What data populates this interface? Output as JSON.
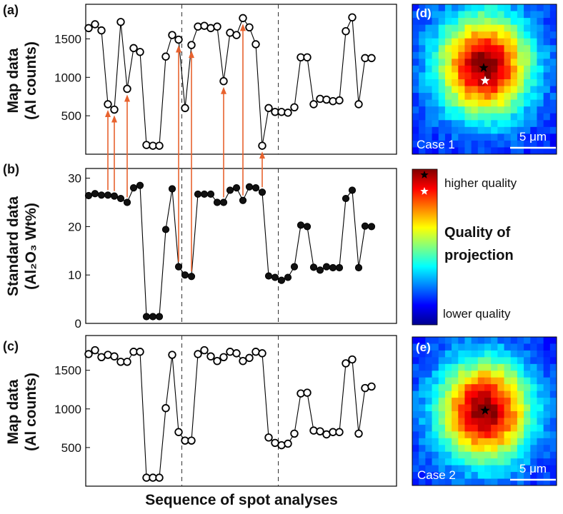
{
  "chart_data": [
    {
      "panel": "(a)",
      "type": "line",
      "marker": "open-circle",
      "ylabel": [
        "Map data",
        "(Al counts)"
      ],
      "ylim": [
        0,
        1950
      ],
      "yticks": [
        500,
        1000,
        1500
      ],
      "values": [
        1640,
        1690,
        1610,
        650,
        580,
        1720,
        850,
        1380,
        1330,
        120,
        110,
        110,
        1270,
        1550,
        1490,
        600,
        1420,
        1660,
        1670,
        1640,
        1660,
        950,
        1580,
        1550,
        1770,
        1650,
        1430,
        110,
        600,
        550,
        550,
        540,
        610,
        1260,
        1260,
        650,
        720,
        710,
        690,
        700,
        1600,
        1780,
        650,
        1250,
        1250
      ],
      "dividers_after_index": [
        14,
        29
      ],
      "grid": false
    },
    {
      "panel": "(b)",
      "type": "line",
      "marker": "filled-circle",
      "ylabel": [
        "Standard data",
        "(Al₂O₃ Wt%)"
      ],
      "ylim": [
        0,
        32
      ],
      "yticks": [
        0,
        10,
        20,
        30
      ],
      "values": [
        26.4,
        26.8,
        26.5,
        26.5,
        26.3,
        25.8,
        25.0,
        28.0,
        28.5,
        1.4,
        1.4,
        1.4,
        19.4,
        27.8,
        11.7,
        10.0,
        9.7,
        26.7,
        26.7,
        26.7,
        25.0,
        25.0,
        27.5,
        28.0,
        25.4,
        28.2,
        28.0,
        27.1,
        9.8,
        9.5,
        8.9,
        9.5,
        11.7,
        20.3,
        20.0,
        11.6,
        11.0,
        11.7,
        11.5,
        11.5,
        25.8,
        27.5,
        11.5,
        20.1,
        20.0
      ],
      "dividers_after_index": [
        14,
        29
      ],
      "grid": false
    },
    {
      "panel": "(c)",
      "type": "line",
      "marker": "open-circle",
      "ylabel": [
        "Map data",
        "(Al counts)"
      ],
      "xlabel": "Sequence of spot analyses",
      "ylim": [
        0,
        1950
      ],
      "yticks": [
        500,
        1000,
        1500
      ],
      "values": [
        1710,
        1760,
        1670,
        1700,
        1680,
        1610,
        1610,
        1740,
        1740,
        110,
        110,
        110,
        1010,
        1700,
        700,
        590,
        590,
        1710,
        1760,
        1680,
        1620,
        1670,
        1740,
        1720,
        1620,
        1660,
        1740,
        1720,
        630,
        560,
        530,
        550,
        680,
        1200,
        1210,
        720,
        710,
        670,
        700,
        700,
        1590,
        1640,
        680,
        1270,
        1290
      ],
      "dividers_after_index": [
        14,
        29
      ],
      "grid": false
    }
  ],
  "arrows": [
    {
      "from_b": 3,
      "to_a": 3
    },
    {
      "from_b": 4,
      "to_a": 4
    },
    {
      "from_b": 6,
      "to_a": 6
    },
    {
      "from_b": 14,
      "to_a": 14
    },
    {
      "from_b": 16,
      "to_a": 16
    },
    {
      "from_b": 21,
      "to_a": 21
    },
    {
      "from_b": 24,
      "to_a": 24
    },
    {
      "from_b": 27,
      "to_a": 27
    }
  ],
  "colors": {
    "line": "#000000",
    "arrow": "#e8622e",
    "divider": "#333333"
  },
  "maps": [
    {
      "panel": "(d)",
      "case": "Case 1",
      "scalebar": "5 μm",
      "stars": [
        "black",
        "white"
      ]
    },
    {
      "panel": "(e)",
      "case": "Case 2",
      "scalebar": "5 μm",
      "stars": [
        "black"
      ]
    }
  ],
  "colorbar": {
    "top_label": "higher quality",
    "bottom_label": "lower quality",
    "title": [
      "Quality of",
      "projection"
    ],
    "colormap": [
      "#00008f",
      "#0000ff",
      "#0080ff",
      "#00ffff",
      "#80ff80",
      "#ffff00",
      "#ff8000",
      "#ff0000",
      "#800000"
    ]
  }
}
